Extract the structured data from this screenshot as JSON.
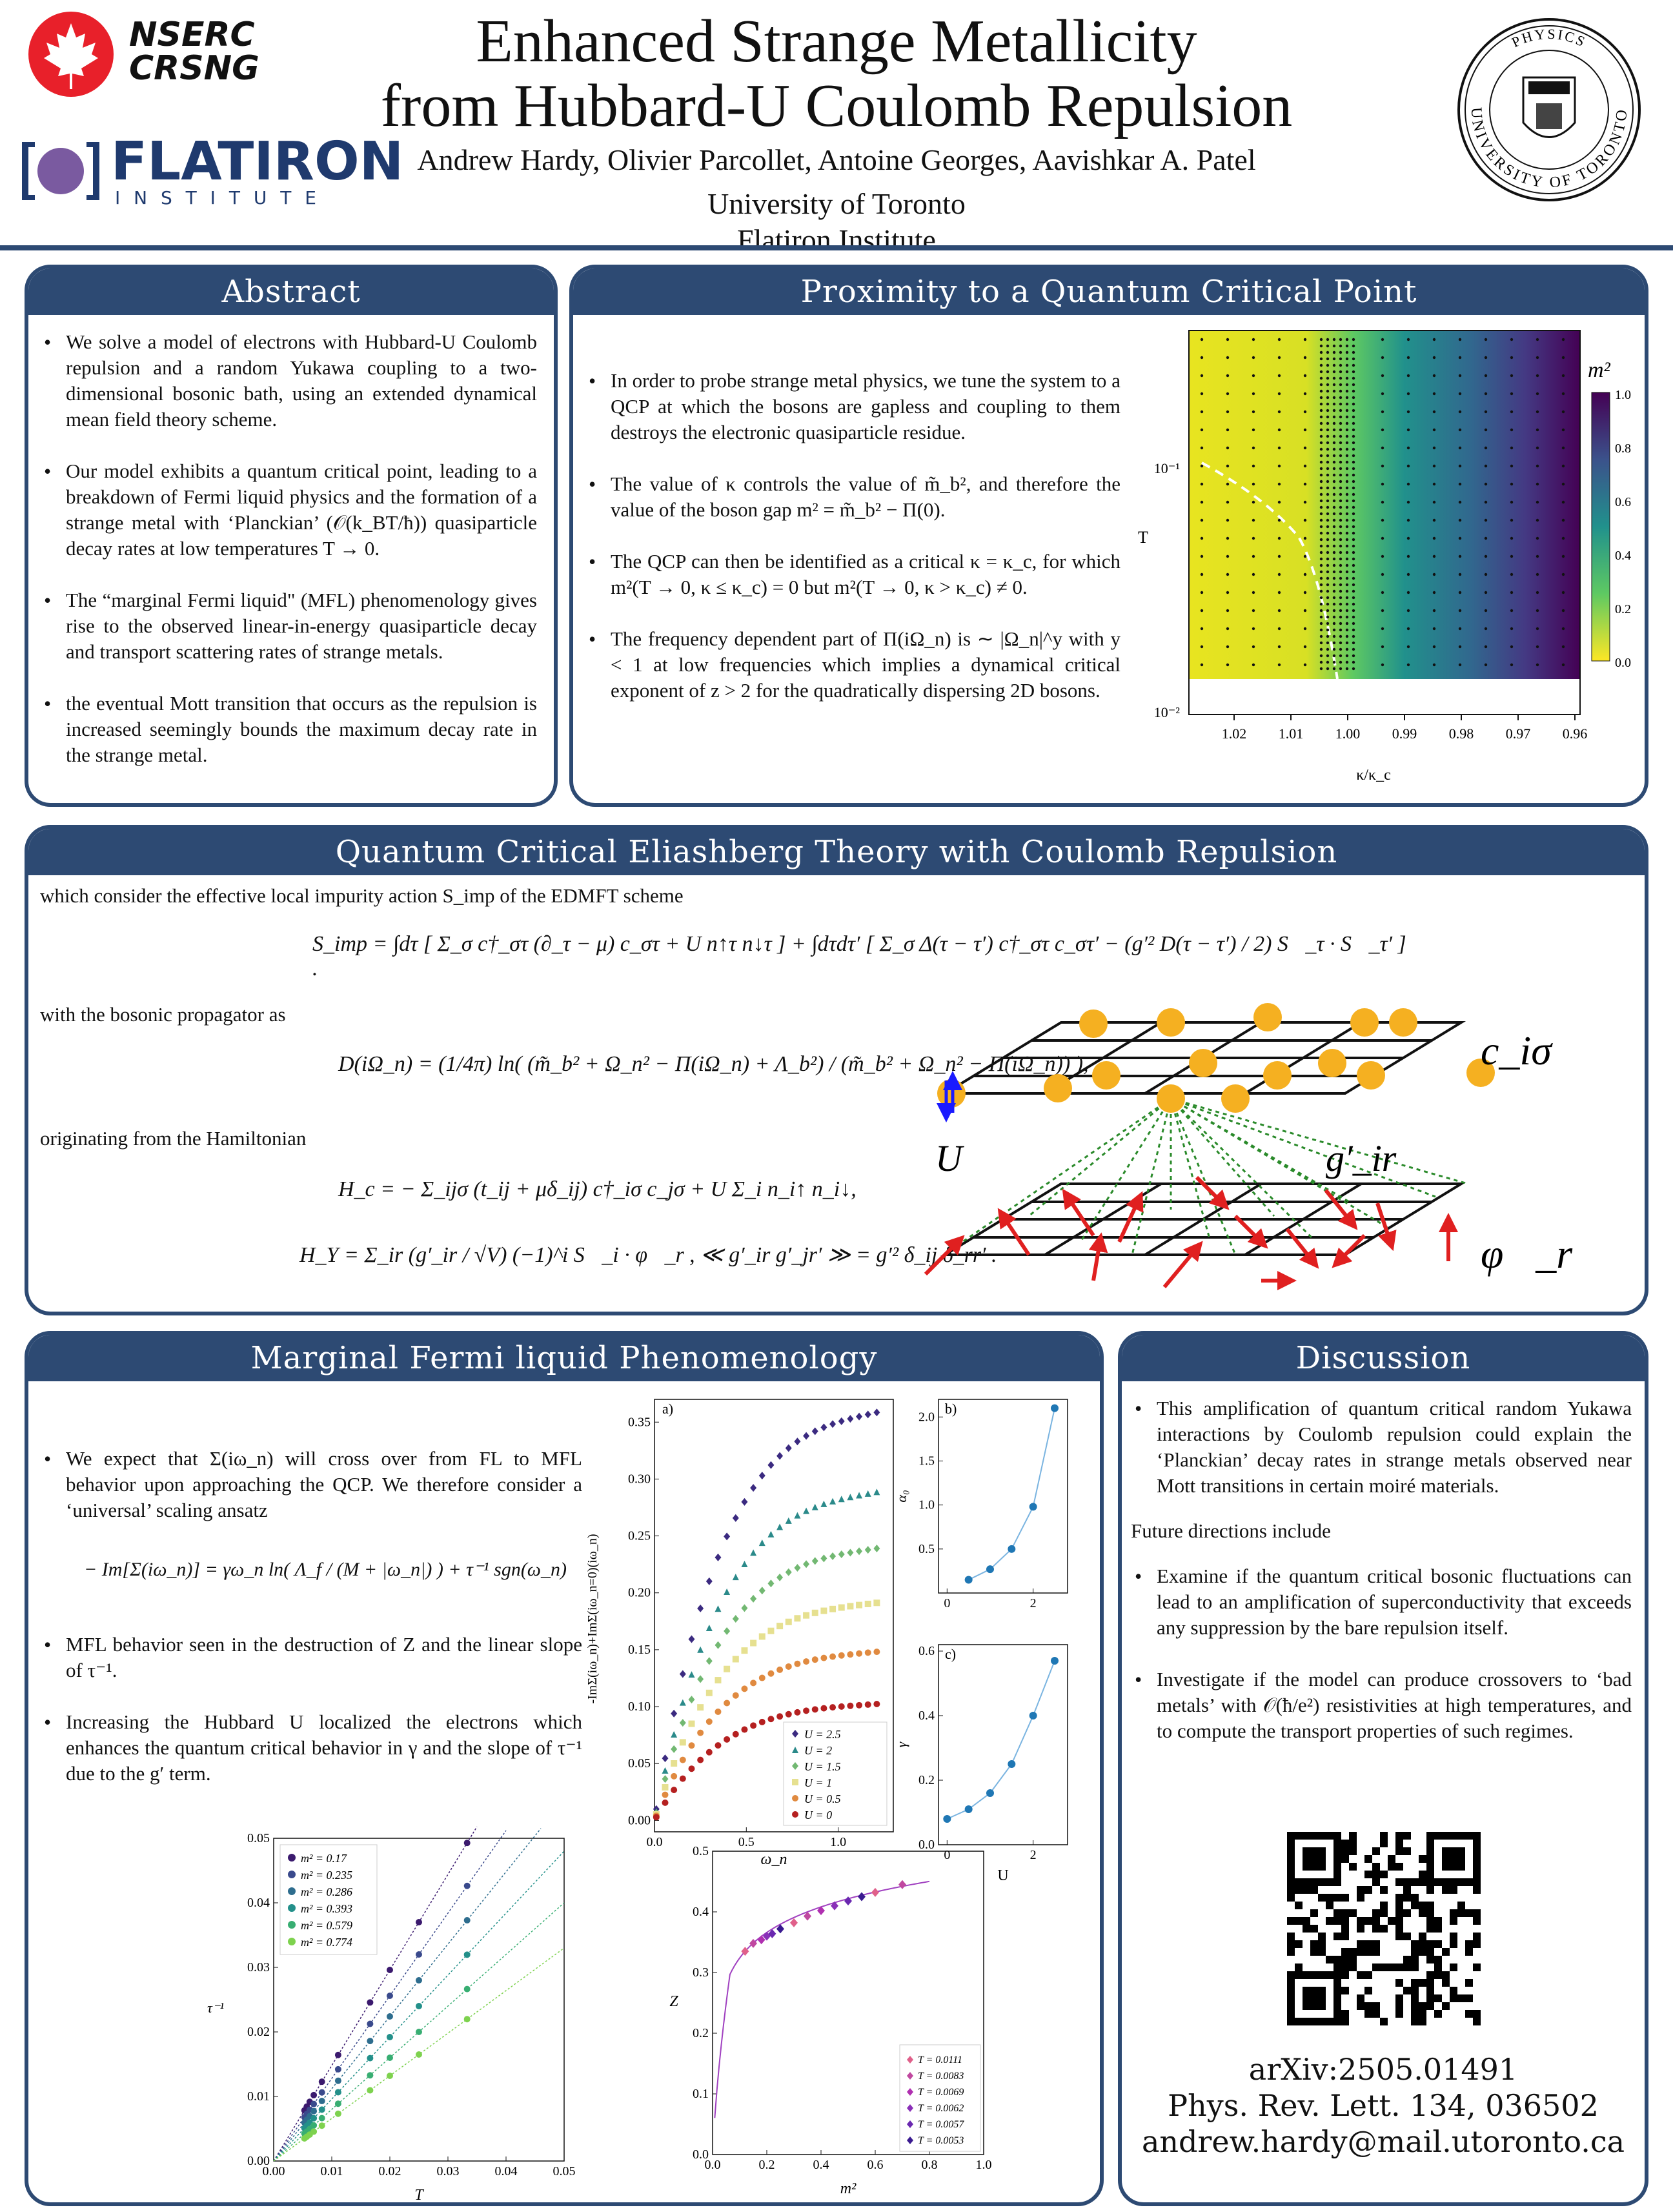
{
  "header": {
    "nserc_line1": "NSERC",
    "nserc_line2": "CRSNG",
    "flatiron_name": "FLATIRON",
    "flatiron_sub": "I N S T I T U T E",
    "title_line1": "Enhanced Strange Metallicity",
    "title_line2": "from Hubbard-U Coulomb Repulsion",
    "authors": "Andrew Hardy, Olivier Parcollet, Antoine Georges, Aavishkar A. Patel",
    "affil1": "University of Toronto",
    "affil2": "Flatiron Institute",
    "seal_top": "PHYSICS",
    "seal_bottom": "UNIVERSITY OF TORONTO"
  },
  "abstract": {
    "heading": "Abstract",
    "bullets": [
      "We solve a model of electrons with Hubbard-U Coulomb repulsion and a random Yukawa coupling to a two-dimensional bosonic bath, using an extended dynamical mean field theory scheme.",
      "Our model exhibits a quantum critical point, leading to a breakdown of Fermi liquid physics and the formation of a strange metal with ‘Planckian’ (𝒪(k_BT/ħ)) quasiparticle decay rates at low temperatures T → 0.",
      "The “marginal Fermi liquid\" (MFL) phenomenology gives rise to the observed linear-in-energy quasiparticle decay and transport scattering rates of strange metals.",
      "the eventual Mott transition that occurs as the repulsion is increased seemingly bounds the maximum decay rate in the strange metal."
    ]
  },
  "qcp": {
    "heading": "Proximity to a Quantum Critical Point",
    "bullets": [
      "In order to probe strange metal physics, we tune the system to a QCP at which the bosons are gapless and coupling to them destroys the electronic quasiparticle residue.",
      "The value of κ controls the value of m̃_b², and therefore the value of the boson gap m² = m̃_b² − Π(0).",
      "The QCP can then be identified as a critical κ = κ_c, for which m²(T → 0, κ ≤ κ_c) = 0 but m²(T → 0, κ > κ_c) ≠ 0.",
      "The frequency dependent part of Π(iΩ_n) is ∼ |Ω_n|^y with y < 1 at low frequencies which implies a dynamical critical exponent of z > 2 for the quadratically dispersing 2D bosons."
    ],
    "heatmap": {
      "colorbar_title": "m²",
      "colorbar_ticks": [
        "1.0",
        "0.8",
        "0.6",
        "0.4",
        "0.2",
        "0.0"
      ],
      "y_label": "T",
      "y_ticks": [
        "10⁻¹",
        "10⁻²"
      ],
      "x_label": "κ/κ_c",
      "x_ticks": [
        "1.02",
        "1.01",
        "1.00",
        "0.99",
        "0.98",
        "0.97",
        "0.96"
      ]
    }
  },
  "eliashberg": {
    "heading": "Quantum Critical Eliashberg Theory with Coulomb Repulsion",
    "intro": "which consider the effective local impurity action S_imp of the EDMFT scheme",
    "eq_action": "S_imp = ∫dτ [ Σ_σ c†_στ (∂_τ − μ) c_στ + U n↑τ n↓τ ] + ∫dτdτ′ [ Σ_σ Δ(τ − τ′) c†_στ c_στ′ − (g′² D(τ − τ′) / 2) S⃗_τ · S⃗_τ′ ] .",
    "with_prop": "with the bosonic propagator as",
    "eq_prop": "D(iΩ_n) = (1/4π) ln( (m̃_b² + Ω_n² − Π(iΩ_n) + Λ_b²) / (m̃_b² + Ω_n² − Π(iΩ_n)) ),",
    "orig": "originating from the Hamiltonian",
    "eq_hc": "H_c = − Σ_ijσ (t_ij + μδ_ij) c†_iσ c_jσ + U Σ_i n_i↑ n_i↓,",
    "eq_hy": "H_Y = Σ_ir (g′_ir / √V) (−1)^i S⃗_i · φ⃗_r ,   ≪ g′_ir g′_jr′ ≫ = g′² δ_ij δ_rr′ .",
    "diagram_labels": {
      "c": "c_iσ",
      "U": "U",
      "g": "g′_ir",
      "phi": "φ⃗_r"
    }
  },
  "mfl": {
    "heading": "Marginal Fermi liquid Phenomenology",
    "bullet1": "We expect that Σ(iω_n) will cross over from FL to MFL behavior upon approaching the QCP. We therefore consider a ‘universal’ scaling ansatz",
    "eq_ansatz": "− Im[Σ(iω_n)] = γω_n ln( Λ_f / (M + |ω_n|) ) + τ⁻¹ sgn(ω_n)",
    "bullet2": "MFL behavior seen in the destruction of Z and the linear slope of τ⁻¹.",
    "bullet3": "Increasing the Hubbard U localized the electrons which enhances the quantum critical behavior in γ and the slope of τ⁻¹ due to the g′ term."
  },
  "discussion": {
    "heading": "Discussion",
    "bullet1": "This amplification of quantum critical random Yukawa interactions by Coulomb repulsion could explain the ‘Planckian’ decay rates in strange metals observed near Mott transitions in certain moiré materials.",
    "future": "Future directions include",
    "bullet2": "Examine if the quantum critical bosonic fluctuations can lead to an amplification of superconductivity that exceeds any suppression by the bare repulsion itself.",
    "bullet3": "Investigate if the model can produce crossovers to ‘bad metals’ with 𝒪(ħ/e²) resistivities at high temperatures, and to compute the transport properties of such regimes.",
    "arxiv": "arXiv:2505.01491",
    "journal": "Phys. Rev. Lett. 134, 036502",
    "email": "andrew.hardy@mail.utoronto.ca"
  },
  "chart_data": [
    {
      "type": "scatter",
      "panel": "a)",
      "xlabel": "ω_n",
      "ylabel": "-ImΣ(iω_n)+ImΣ(iω_n=0)(iω_n)",
      "xlim": [
        0,
        1.3
      ],
      "ylim": [
        -0.01,
        0.37
      ],
      "xticks": [
        "0.0",
        "0.5",
        "1.0"
      ],
      "yticks": [
        "0.00",
        "0.05",
        "0.10",
        "0.15",
        "0.20",
        "0.25",
        "0.30",
        "0.35"
      ],
      "series": [
        {
          "name": "U = 2.5",
          "color": "#3b2a80",
          "marker": "diamond",
          "peak": 0.375
        },
        {
          "name": "U = 2",
          "color": "#2b8a8a",
          "marker": "triangle",
          "peak": 0.302
        },
        {
          "name": "U = 1.5",
          "color": "#72b872",
          "marker": "diamond",
          "peak": 0.25
        },
        {
          "name": "U = 1",
          "color": "#e6e090",
          "marker": "square",
          "peak": 0.2
        },
        {
          "name": "U = 0.5",
          "color": "#e08a40",
          "marker": "circle",
          "peak": 0.155
        },
        {
          "name": "U = 0",
          "color": "#b52020",
          "marker": "circle",
          "peak": 0.107
        }
      ]
    },
    {
      "type": "line",
      "panel": "b)",
      "xlabel": "",
      "ylabel": "α₀",
      "x": [
        0.5,
        1.0,
        1.5,
        2.0,
        2.5
      ],
      "values": [
        0.15,
        0.27,
        0.5,
        0.98,
        2.1
      ],
      "yticks": [
        "0.5",
        "1.0",
        "1.5",
        "2.0"
      ],
      "xticks": [
        "0",
        "2"
      ]
    },
    {
      "type": "line",
      "panel": "c)",
      "xlabel": "U",
      "ylabel": "γ",
      "x": [
        0,
        0.5,
        1.0,
        1.5,
        2.0,
        2.5
      ],
      "values": [
        0.08,
        0.11,
        0.16,
        0.25,
        0.4,
        0.57
      ],
      "yticks": [
        "0.0",
        "0.2",
        "0.4",
        "0.6"
      ],
      "xticks": [
        "0",
        "2"
      ]
    },
    {
      "type": "scatter",
      "xlabel": "T",
      "ylabel": "τ⁻¹",
      "xlim": [
        0,
        0.05
      ],
      "ylim": [
        0,
        0.05
      ],
      "xticks": [
        "0.00",
        "0.01",
        "0.02",
        "0.03",
        "0.04",
        "0.05"
      ],
      "yticks": [
        "0.00",
        "0.01",
        "0.02",
        "0.03",
        "0.04",
        "0.05"
      ],
      "series": [
        {
          "name": "m² = 0.17",
          "color": "#3b1a6e",
          "slope": 1.48
        },
        {
          "name": "m² = 0.235",
          "color": "#3a4a8c",
          "slope": 1.28
        },
        {
          "name": "m² = 0.286",
          "color": "#2e6d8e",
          "slope": 1.12
        },
        {
          "name": "m² = 0.393",
          "color": "#23908a",
          "slope": 0.96
        },
        {
          "name": "m² = 0.579",
          "color": "#38ae72",
          "slope": 0.8
        },
        {
          "name": "m² = 0.774",
          "color": "#7ed24e",
          "slope": 0.66
        }
      ]
    },
    {
      "type": "scatter",
      "xlabel": "m²",
      "ylabel": "Z",
      "xlim": [
        0,
        1.0
      ],
      "ylim": [
        0,
        0.5
      ],
      "xticks": [
        "0.0",
        "0.2",
        "0.4",
        "0.6",
        "0.8",
        "1.0"
      ],
      "yticks": [
        "0.0",
        "0.1",
        "0.2",
        "0.3",
        "0.4",
        "0.5"
      ],
      "series": [
        {
          "name": "T = 0.0111",
          "color": "#e0608a"
        },
        {
          "name": "T = 0.0083",
          "color": "#c048a0"
        },
        {
          "name": "T = 0.0069",
          "color": "#b030b0"
        },
        {
          "name": "T = 0.0062",
          "color": "#8a30b8"
        },
        {
          "name": "T = 0.0057",
          "color": "#6a28b0"
        },
        {
          "name": "T = 0.0053",
          "color": "#3a1a90"
        }
      ],
      "x": [
        0.12,
        0.15,
        0.18,
        0.2,
        0.22,
        0.25,
        0.3,
        0.35,
        0.4,
        0.45,
        0.5,
        0.55,
        0.6,
        0.7
      ],
      "values": [
        0.335,
        0.348,
        0.354,
        0.36,
        0.364,
        0.372,
        0.382,
        0.393,
        0.402,
        0.41,
        0.418,
        0.425,
        0.432,
        0.445
      ]
    }
  ],
  "colors": {
    "panel": "#2d4a73",
    "nserc_red": "#e8202a",
    "flatiron_blue": "#1f3a6e",
    "flatiron_purple": "#7a5aa0"
  }
}
